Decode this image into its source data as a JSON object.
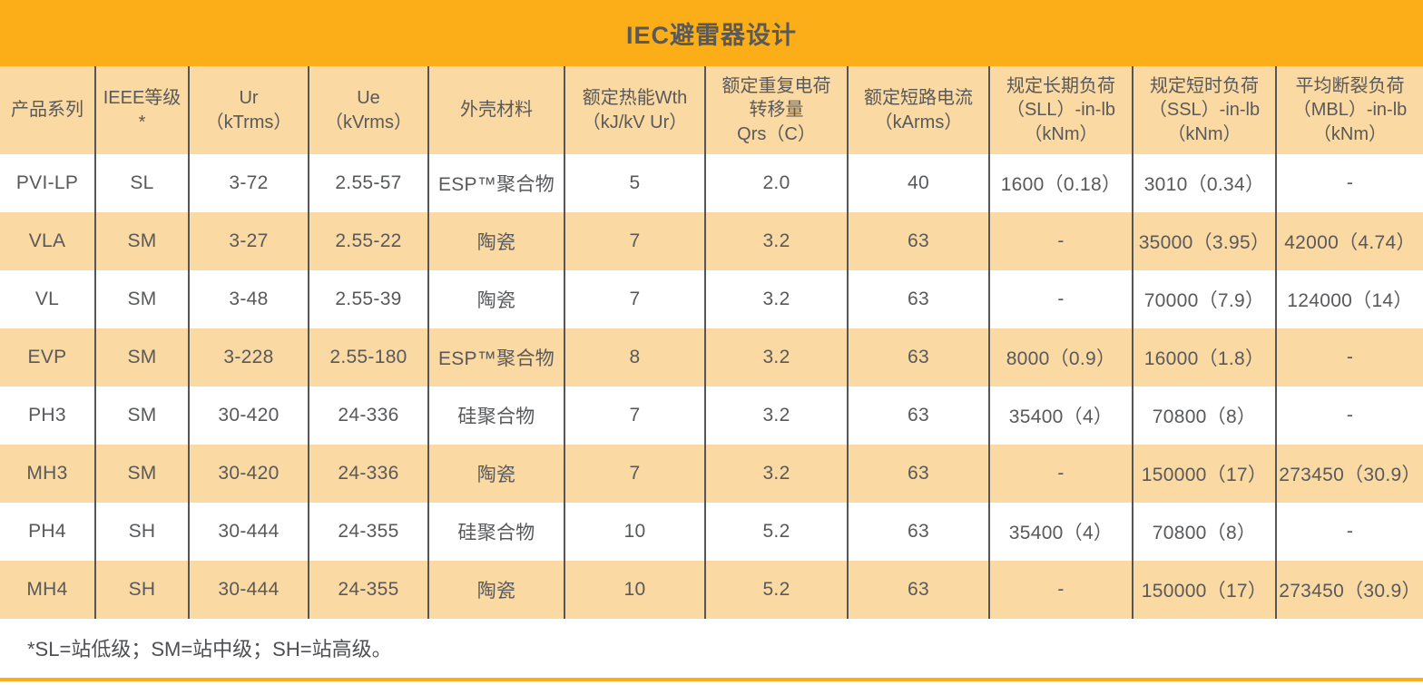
{
  "page": {
    "title": "IEC避雷器设计",
    "footnote": "*SL=站低级；SM=站中级；SH=站高级。"
  },
  "colors": {
    "title_band": "#FBAE17",
    "shaded_row": "#FBD9A2",
    "text": "#58595B",
    "divider": "#55565A",
    "bottom_rule": "#FBAE17"
  },
  "table": {
    "headers": [
      "产品系列",
      "IEEE等级\n*",
      "Ur\n（kTrms）",
      "Ue\n（kVrms）",
      "外壳材料",
      "额定热能Wth\n（kJ/kV Ur）",
      "额定重复电荷\n转移量\nQrs（C）",
      "额定短路电流\n（kArms）",
      "规定长期负荷\n（SLL）-in-lb\n（kNm）",
      "规定短时负荷\n（SSL）-in-lb\n（kNm）",
      "平均断裂负荷\n（MBL）-in-lb\n（kNm）"
    ],
    "rows": [
      {
        "shaded": false,
        "cells": [
          "PVI-LP",
          "SL",
          "3-72",
          "2.55-57",
          "ESP™聚合物",
          "5",
          "2.0",
          "40",
          "1600（0.18）",
          "3010（0.34）",
          "-"
        ]
      },
      {
        "shaded": true,
        "cells": [
          "VLA",
          "SM",
          "3-27",
          "2.55-22",
          "陶瓷",
          "7",
          "3.2",
          "63",
          "-",
          "35000（3.95）",
          "42000（4.74）"
        ]
      },
      {
        "shaded": false,
        "cells": [
          "VL",
          "SM",
          "3-48",
          "2.55-39",
          "陶瓷",
          "7",
          "3.2",
          "63",
          "-",
          "70000（7.9）",
          "124000（14）"
        ]
      },
      {
        "shaded": true,
        "cells": [
          "EVP",
          "SM",
          "3-228",
          "2.55-180",
          "ESP™聚合物",
          "8",
          "3.2",
          "63",
          "8000（0.9）",
          "16000（1.8）",
          "-"
        ]
      },
      {
        "shaded": false,
        "cells": [
          "PH3",
          "SM",
          "30-420",
          "24-336",
          "硅聚合物",
          "7",
          "3.2",
          "63",
          "35400（4）",
          "70800（8）",
          "-"
        ]
      },
      {
        "shaded": true,
        "cells": [
          "MH3",
          "SM",
          "30-420",
          "24-336",
          "陶瓷",
          "7",
          "3.2",
          "63",
          "-",
          "150000（17）",
          "273450（30.9）"
        ]
      },
      {
        "shaded": false,
        "cells": [
          "PH4",
          "SH",
          "30-444",
          "24-355",
          "硅聚合物",
          "10",
          "5.2",
          "63",
          "35400（4）",
          "70800（8）",
          "-"
        ]
      },
      {
        "shaded": true,
        "cells": [
          "MH4",
          "SH",
          "30-444",
          "24-355",
          "陶瓷",
          "10",
          "5.2",
          "63",
          "-",
          "150000（17）",
          "273450（30.9）"
        ]
      }
    ]
  }
}
